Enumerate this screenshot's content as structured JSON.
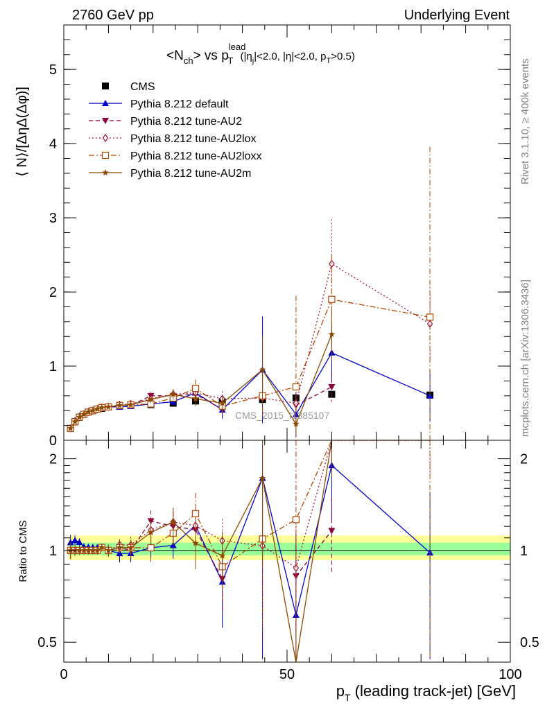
{
  "header": {
    "left": "2760 GeV pp",
    "right": "Underlying Event"
  },
  "side_labels": {
    "rivet": "Rivet 3.1.10, ≥ 400k events",
    "mcplots": "mcplots.cern.ch [arXiv:1306.3436]"
  },
  "title": {
    "main": "<N",
    "main_sub": "ch",
    "vs": "> vs p",
    "vs_sup": "lead",
    "vs_sub": "T",
    "cuts_a": " (|η",
    "cuts_a_sub": "j",
    "cuts_b": "|<2.0, |η|<2.0, p",
    "cuts_b_sub": "T",
    "cuts_c": ">0.5)"
  },
  "watermark": "CMS_2015_I1385107",
  "colors": {
    "cms": "#000000",
    "default": "#0000cc",
    "au2": "#8b0040",
    "au2lox": "#a0103a",
    "au2loxx": "#b34700",
    "au2m": "#8b4a00",
    "band_inner": "#99ff99",
    "band_outer": "#ffff99"
  },
  "chart_data": {
    "type": "scatter",
    "xlabel": "p",
    "xlabel_sub": "T",
    "xlabel_rest": " (leading track-jet) [GeV]",
    "ylabel": "⟨ N⟩/[ΔηΔ(Δφ)]",
    "ratio_label": "Ratio to CMS",
    "xlim": [
      0,
      100
    ],
    "ylim": [
      0,
      5.6
    ],
    "ratio_ylim": [
      0.43,
      2.3
    ],
    "x_ticks": [
      0,
      50,
      100
    ],
    "y_ticks": [
      0,
      1,
      2,
      3,
      4,
      5
    ],
    "ratio_ticks": [
      0.5,
      1,
      2
    ],
    "x": [
      1.5,
      2.5,
      3.5,
      4.5,
      5.5,
      6.5,
      7.5,
      8.5,
      10,
      12.5,
      15,
      19.5,
      24.5,
      29.5,
      35.5,
      44.5,
      52,
      60,
      82
    ],
    "series": [
      {
        "name": "CMS",
        "key": "cms",
        "marker": "square-filled",
        "line": "none",
        "values": [
          0.16,
          0.25,
          0.31,
          0.35,
          0.38,
          0.4,
          0.42,
          0.43,
          0.45,
          0.46,
          0.47,
          0.48,
          0.5,
          0.53,
          0.52,
          0.55,
          0.57,
          0.62,
          0.61
        ]
      },
      {
        "name": "Pythia 8.212 default",
        "key": "default",
        "marker": "triangle-up-filled",
        "line": "solid",
        "values": [
          0.17,
          0.27,
          0.33,
          0.36,
          0.39,
          0.41,
          0.43,
          0.44,
          0.45,
          0.45,
          0.46,
          0.49,
          0.52,
          0.64,
          0.41,
          0.95,
          0.35,
          1.18,
          0.6
        ],
        "errors": [
          0.01,
          0.01,
          0.01,
          0.01,
          0.01,
          0.01,
          0.01,
          0.01,
          0.02,
          0.03,
          0.03,
          0.04,
          0.05,
          0.09,
          0.12,
          0.72,
          0.3,
          0.4,
          0.35
        ]
      },
      {
        "name": "Pythia 8.212 tune-AU2",
        "key": "au2",
        "marker": "triangle-down-filled",
        "line": "dashed",
        "values": [
          0.16,
          0.25,
          0.31,
          0.35,
          0.38,
          0.4,
          0.42,
          0.44,
          0.45,
          0.47,
          0.47,
          0.6,
          0.6,
          0.62,
          0.42,
          null,
          0.47,
          0.72,
          null
        ],
        "errors": [
          0.01,
          0.01,
          0.01,
          0.01,
          0.01,
          0.01,
          0.01,
          0.01,
          0.02,
          0.02,
          0.03,
          0.05,
          0.07,
          0.1,
          0.1,
          null,
          0.15,
          0.2,
          null
        ]
      },
      {
        "name": "Pythia 8.212 tune-AU2lox",
        "key": "au2lox",
        "marker": "diamond-open",
        "line": "dotted",
        "values": [
          0.16,
          0.25,
          0.31,
          0.35,
          0.38,
          0.4,
          0.42,
          0.44,
          0.45,
          0.48,
          0.49,
          0.56,
          0.62,
          0.64,
          0.56,
          0.57,
          0.5,
          2.38,
          1.57
        ],
        "errors": [
          0.01,
          0.01,
          0.01,
          0.01,
          0.01,
          0.01,
          0.01,
          0.01,
          0.02,
          0.02,
          0.03,
          0.05,
          0.07,
          0.1,
          0.1,
          0.3,
          0.2,
          0.6,
          0.5
        ]
      },
      {
        "name": "Pythia 8.212 tune-AU2loxx",
        "key": "au2loxx",
        "marker": "square-open",
        "line": "dashdot",
        "values": [
          0.16,
          0.25,
          0.31,
          0.35,
          0.38,
          0.4,
          0.42,
          0.44,
          0.45,
          0.47,
          0.48,
          0.49,
          0.57,
          0.7,
          0.46,
          0.6,
          0.72,
          1.9,
          1.66
        ],
        "errors": [
          0.01,
          0.01,
          0.01,
          0.01,
          0.01,
          0.01,
          0.01,
          0.01,
          0.02,
          0.02,
          0.03,
          0.05,
          0.07,
          0.12,
          0.1,
          0.3,
          1.23,
          0.6,
          2.3
        ]
      },
      {
        "name": "Pythia 8.212 tune-AU2m",
        "key": "au2m",
        "marker": "star-filled",
        "line": "solid",
        "values": [
          0.16,
          0.25,
          0.31,
          0.35,
          0.38,
          0.4,
          0.42,
          0.44,
          0.45,
          0.47,
          0.48,
          0.55,
          0.62,
          0.56,
          0.5,
          0.95,
          0.22,
          1.43,
          null
        ],
        "errors": [
          0.01,
          0.01,
          0.01,
          0.01,
          0.01,
          0.01,
          0.01,
          0.01,
          0.02,
          0.02,
          0.03,
          0.05,
          0.07,
          0.1,
          0.1,
          0.45,
          0.1,
          0.35,
          null
        ]
      }
    ]
  }
}
